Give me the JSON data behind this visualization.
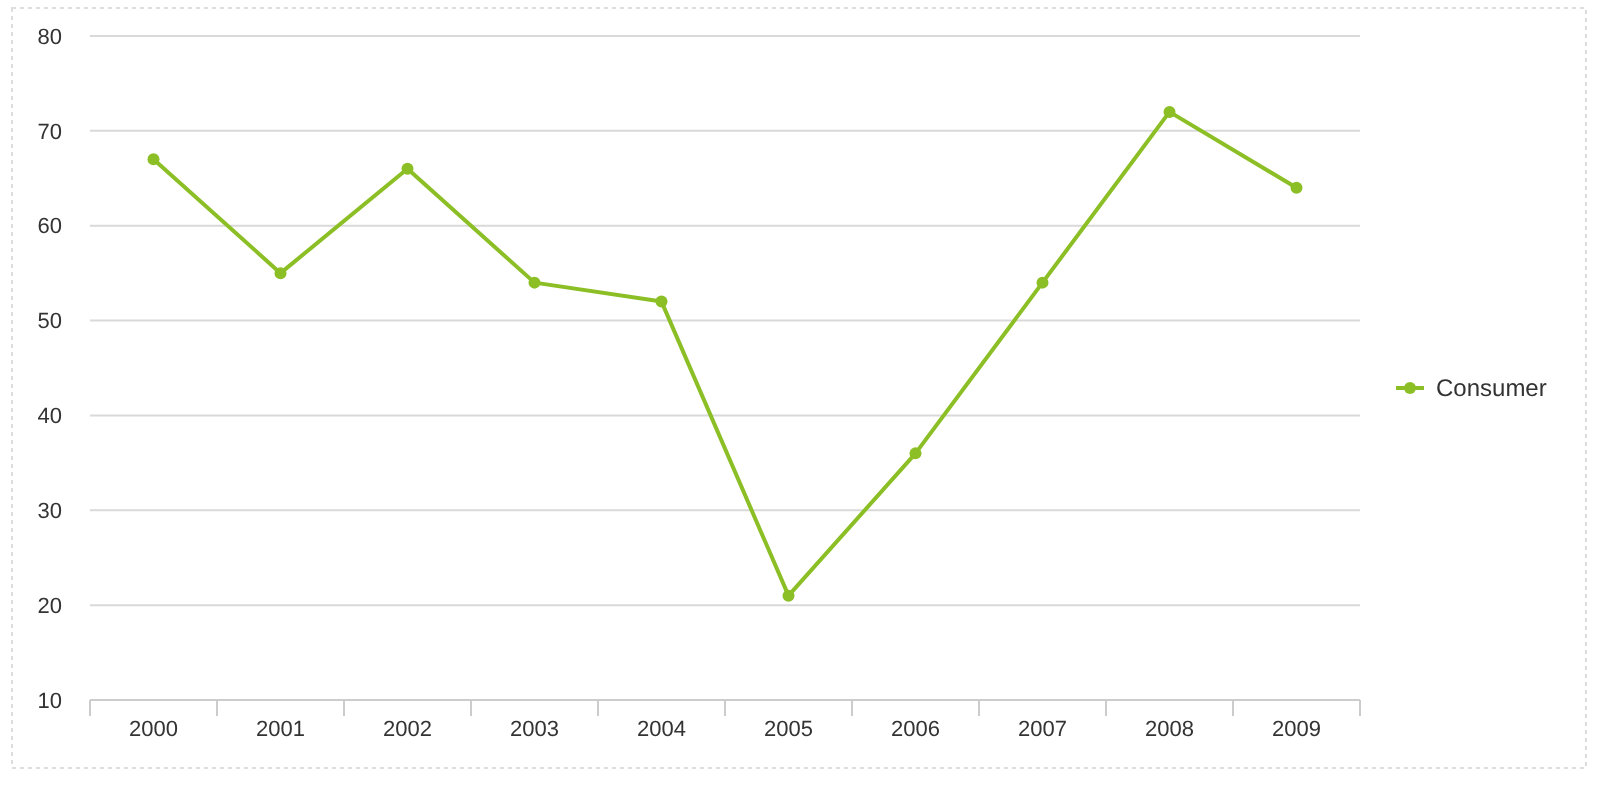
{
  "chart_data": {
    "type": "line",
    "categories": [
      "2000",
      "2001",
      "2002",
      "2003",
      "2004",
      "2005",
      "2006",
      "2007",
      "2008",
      "2009"
    ],
    "series": [
      {
        "name": "Consumer",
        "color": "#8cbf26",
        "values": [
          67,
          55,
          66,
          54,
          52,
          21,
          36,
          54,
          72,
          64
        ]
      }
    ],
    "ylim": [
      10,
      80
    ],
    "yticks": [
      10,
      20,
      30,
      40,
      50,
      60,
      70,
      80
    ],
    "grid": "y",
    "legend": "right",
    "marker": "circle",
    "line_style": "solid"
  }
}
